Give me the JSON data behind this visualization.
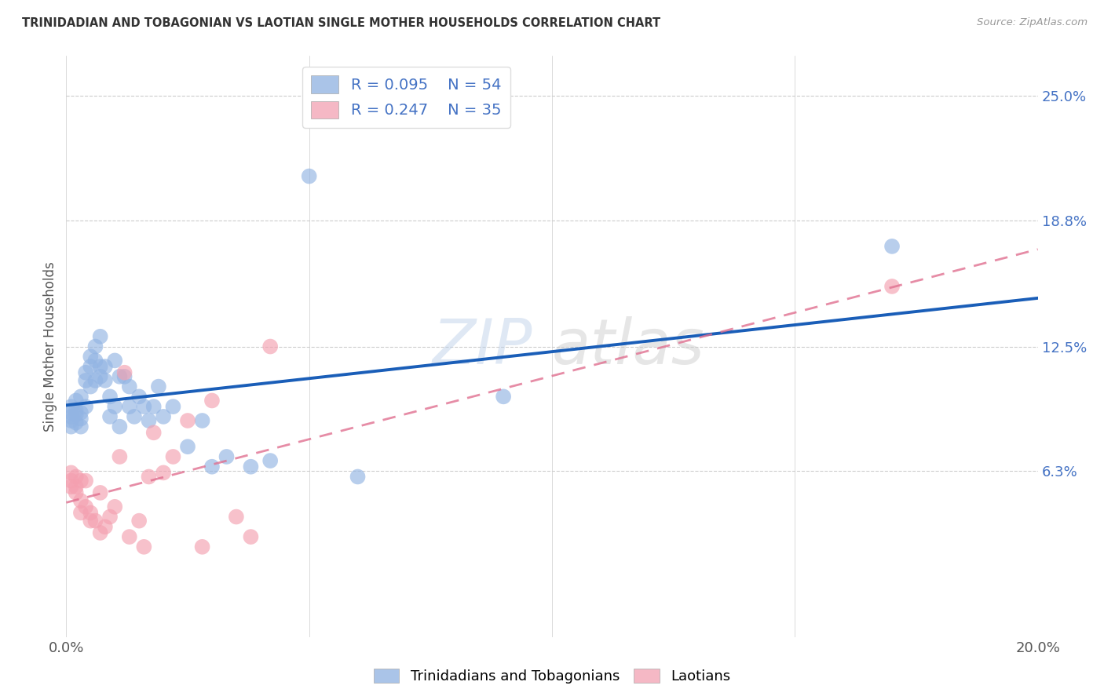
{
  "title": "TRINIDADIAN AND TOBAGONIAN VS LAOTIAN SINGLE MOTHER HOUSEHOLDS CORRELATION CHART",
  "source": "Source: ZipAtlas.com",
  "ylabel": "Single Mother Households",
  "x_min": 0.0,
  "x_max": 0.2,
  "y_min": -0.02,
  "y_max": 0.27,
  "x_ticks": [
    0.0,
    0.05,
    0.1,
    0.15,
    0.2
  ],
  "x_tick_labels": [
    "0.0%",
    "",
    "",
    "",
    "20.0%"
  ],
  "y_tick_labels_right": [
    "6.3%",
    "12.5%",
    "18.8%",
    "25.0%"
  ],
  "y_tick_vals_right": [
    0.063,
    0.125,
    0.188,
    0.25
  ],
  "watermark_zip": "ZIP",
  "watermark_atlas": "atlas",
  "trinidadian_color": "#92b4e3",
  "laotian_color": "#f4a0b0",
  "trinidadian_line_color": "#1a5eb8",
  "laotian_line_color": "#e07090",
  "R_trinidadian": 0.095,
  "N_trinidadian": 54,
  "R_laotian": 0.247,
  "N_laotian": 35,
  "trinidadian_x": [
    0.001,
    0.001,
    0.001,
    0.001,
    0.001,
    0.002,
    0.002,
    0.002,
    0.002,
    0.003,
    0.003,
    0.003,
    0.003,
    0.004,
    0.004,
    0.004,
    0.005,
    0.005,
    0.005,
    0.006,
    0.006,
    0.006,
    0.007,
    0.007,
    0.007,
    0.008,
    0.008,
    0.009,
    0.009,
    0.01,
    0.01,
    0.011,
    0.011,
    0.012,
    0.013,
    0.013,
    0.014,
    0.015,
    0.016,
    0.017,
    0.018,
    0.019,
    0.02,
    0.022,
    0.025,
    0.028,
    0.03,
    0.033,
    0.038,
    0.042,
    0.05,
    0.06,
    0.09,
    0.17
  ],
  "trinidadian_y": [
    0.09,
    0.085,
    0.088,
    0.092,
    0.095,
    0.093,
    0.098,
    0.087,
    0.091,
    0.1,
    0.085,
    0.092,
    0.089,
    0.112,
    0.108,
    0.095,
    0.12,
    0.115,
    0.105,
    0.125,
    0.118,
    0.108,
    0.13,
    0.115,
    0.11,
    0.115,
    0.108,
    0.1,
    0.09,
    0.118,
    0.095,
    0.11,
    0.085,
    0.11,
    0.105,
    0.095,
    0.09,
    0.1,
    0.095,
    0.088,
    0.095,
    0.105,
    0.09,
    0.095,
    0.075,
    0.088,
    0.065,
    0.07,
    0.065,
    0.068,
    0.21,
    0.06,
    0.1,
    0.175
  ],
  "laotian_x": [
    0.001,
    0.001,
    0.001,
    0.002,
    0.002,
    0.002,
    0.003,
    0.003,
    0.003,
    0.004,
    0.004,
    0.005,
    0.005,
    0.006,
    0.007,
    0.007,
    0.008,
    0.009,
    0.01,
    0.011,
    0.012,
    0.013,
    0.015,
    0.016,
    0.017,
    0.018,
    0.02,
    0.022,
    0.025,
    0.028,
    0.03,
    0.035,
    0.038,
    0.042,
    0.17
  ],
  "laotian_y": [
    0.058,
    0.062,
    0.055,
    0.06,
    0.055,
    0.052,
    0.058,
    0.048,
    0.042,
    0.058,
    0.045,
    0.038,
    0.042,
    0.038,
    0.052,
    0.032,
    0.035,
    0.04,
    0.045,
    0.07,
    0.112,
    0.03,
    0.038,
    0.025,
    0.06,
    0.082,
    0.062,
    0.07,
    0.088,
    0.025,
    0.098,
    0.04,
    0.03,
    0.125,
    0.155
  ],
  "background_color": "#ffffff",
  "grid_color": "#cccccc",
  "legend_color_trinidadian": "#aac4e8",
  "legend_color_laotian": "#f5b8c5"
}
